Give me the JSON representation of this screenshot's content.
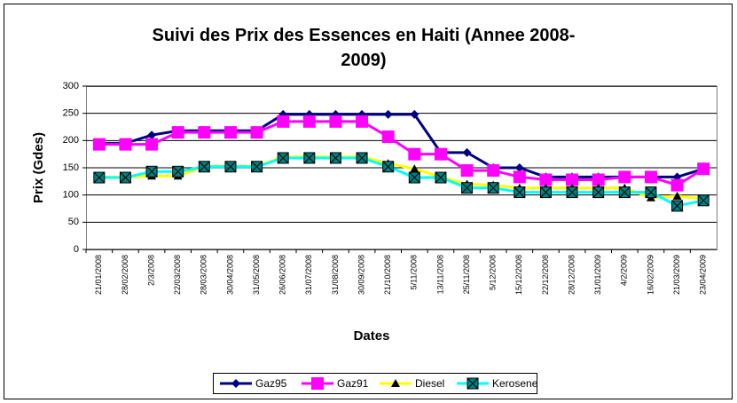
{
  "chart_data": {
    "type": "line",
    "title": "Suivi des Prix des Essences en Haiti (Annee 2008-2009)",
    "x_label": "Dates",
    "y_label": "Prix (Gdes)",
    "categories": [
      "21/01/2008",
      "28/02/2008",
      "2/3/2008",
      "22/03/2008",
      "28/03/2008",
      "30/04/2008",
      "31/05/2008",
      "26/06/2008",
      "31/07/2008",
      "31/08/2008",
      "30/09/2008",
      "21/10/2008",
      "5/11/2008",
      "13/11/2008",
      "25/11/2008",
      "5/12/2008",
      "15/12/2008",
      "22/12/2008",
      "28/12/2008",
      "31/01/2009",
      "4/2/2009",
      "16/02/2009",
      "21/03/2009",
      "23/04/2009"
    ],
    "series": [
      {
        "name": "Gaz95",
        "color": "#000080",
        "values": [
          195,
          195,
          210,
          218,
          218,
          218,
          218,
          248,
          248,
          248,
          248,
          248,
          248,
          178,
          178,
          150,
          150,
          133,
          133,
          133,
          133,
          133,
          133,
          148
        ]
      },
      {
        "name": "Gaz91",
        "color": "#ff00ff",
        "values": [
          193,
          193,
          193,
          215,
          215,
          215,
          215,
          235,
          235,
          235,
          235,
          207,
          175,
          175,
          145,
          145,
          133,
          128,
          128,
          128,
          133,
          133,
          118,
          148
        ]
      },
      {
        "name": "Diesel",
        "color": "#ffff00",
        "values": [
          133,
          133,
          135,
          135,
          153,
          153,
          153,
          170,
          170,
          170,
          170,
          158,
          148,
          133,
          120,
          118,
          113,
          113,
          113,
          113,
          113,
          95,
          98,
          93
        ]
      },
      {
        "name": "Kerosene",
        "color": "#00ffff",
        "values": [
          132,
          132,
          143,
          143,
          152,
          152,
          152,
          168,
          168,
          168,
          168,
          152,
          132,
          132,
          113,
          113,
          105,
          105,
          105,
          105,
          105,
          105,
          80,
          90
        ]
      }
    ],
    "ylim": [
      0,
      300
    ],
    "yticks": [
      0,
      50,
      100,
      150,
      200,
      250,
      300
    ],
    "grid": true,
    "legend": "bottom"
  }
}
